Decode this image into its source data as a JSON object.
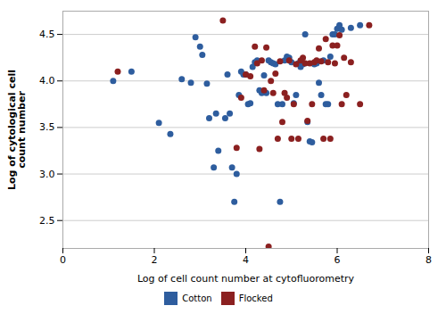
{
  "chart_data": {
    "type": "scatter",
    "xlabel": "Log of cell count number at cytofluorometry",
    "ylabel": "Log of cytological cell\ncount number",
    "xlim": [
      0,
      8
    ],
    "ylim": [
      2.2,
      4.75
    ],
    "xticks": [
      0,
      2,
      4,
      6,
      8
    ],
    "yticks": [
      2.5,
      {
        "value": 3.0,
        "label": "3.0"
      },
      3.5,
      {
        "value": 4.0,
        "label": "4.0"
      },
      4.5
    ],
    "grid": "y",
    "legend": "bottom",
    "series": [
      {
        "name": "Cotton",
        "color": "#2e5d9e",
        "x": [
          1.1,
          1.5,
          2.1,
          2.35,
          2.6,
          2.8,
          2.9,
          3.0,
          3.05,
          3.15,
          3.2,
          3.3,
          3.35,
          3.4,
          3.55,
          3.6,
          3.65,
          3.7,
          3.75,
          3.8,
          3.85,
          3.9,
          3.95,
          4.0,
          4.05,
          4.1,
          4.15,
          4.2,
          4.25,
          4.3,
          4.35,
          4.4,
          4.45,
          4.5,
          4.55,
          4.6,
          4.65,
          4.7,
          4.75,
          4.8,
          4.85,
          4.9,
          4.95,
          5.0,
          5.05,
          5.1,
          5.15,
          5.2,
          5.25,
          5.3,
          5.35,
          5.4,
          5.45,
          5.5,
          5.55,
          5.6,
          5.65,
          5.7,
          5.75,
          5.8,
          5.85,
          5.9,
          5.95,
          6.0,
          6.05,
          6.1,
          6.3,
          6.5
        ],
        "values": [
          4.0,
          4.1,
          3.55,
          3.43,
          4.02,
          3.98,
          4.47,
          4.37,
          4.28,
          3.97,
          3.6,
          3.07,
          3.65,
          3.25,
          3.6,
          4.07,
          3.65,
          3.07,
          2.7,
          3.0,
          3.85,
          4.1,
          4.07,
          4.07,
          3.75,
          3.76,
          4.15,
          4.2,
          4.22,
          3.9,
          3.87,
          4.06,
          3.87,
          4.22,
          4.2,
          4.19,
          4.18,
          3.75,
          2.7,
          3.75,
          4.22,
          4.26,
          4.25,
          4.2,
          3.76,
          3.85,
          4.19,
          4.15,
          4.18,
          4.5,
          3.56,
          3.35,
          3.34,
          4.18,
          4.19,
          3.98,
          3.85,
          4.22,
          3.75,
          3.75,
          4.26,
          4.5,
          4.5,
          4.56,
          4.6,
          4.55,
          4.57,
          4.6
        ]
      },
      {
        "name": "Flocked",
        "color": "#8b2020",
        "x": [
          1.2,
          3.5,
          3.8,
          3.9,
          4.0,
          4.1,
          4.2,
          4.25,
          4.3,
          4.35,
          4.4,
          4.45,
          4.5,
          4.55,
          4.6,
          4.65,
          4.7,
          4.75,
          4.8,
          4.85,
          4.9,
          4.95,
          5.0,
          5.05,
          5.1,
          5.15,
          5.2,
          5.25,
          5.3,
          5.35,
          5.4,
          5.45,
          5.5,
          5.55,
          5.6,
          5.65,
          5.7,
          5.75,
          5.8,
          5.85,
          5.9,
          5.95,
          6.0,
          6.05,
          6.1,
          6.15,
          6.2,
          6.3,
          6.5,
          6.7
        ],
        "values": [
          4.1,
          4.65,
          3.28,
          3.82,
          4.07,
          4.05,
          4.37,
          4.19,
          3.27,
          4.22,
          3.9,
          4.36,
          2.22,
          4.0,
          3.87,
          4.08,
          3.38,
          4.21,
          3.56,
          3.87,
          3.82,
          4.22,
          3.38,
          3.75,
          4.18,
          3.38,
          4.22,
          4.25,
          4.19,
          3.57,
          4.19,
          3.75,
          4.2,
          4.22,
          4.35,
          4.21,
          3.38,
          4.45,
          4.2,
          3.38,
          4.38,
          4.19,
          4.38,
          4.49,
          3.75,
          4.25,
          3.85,
          4.2,
          3.75,
          4.6
        ]
      }
    ]
  }
}
